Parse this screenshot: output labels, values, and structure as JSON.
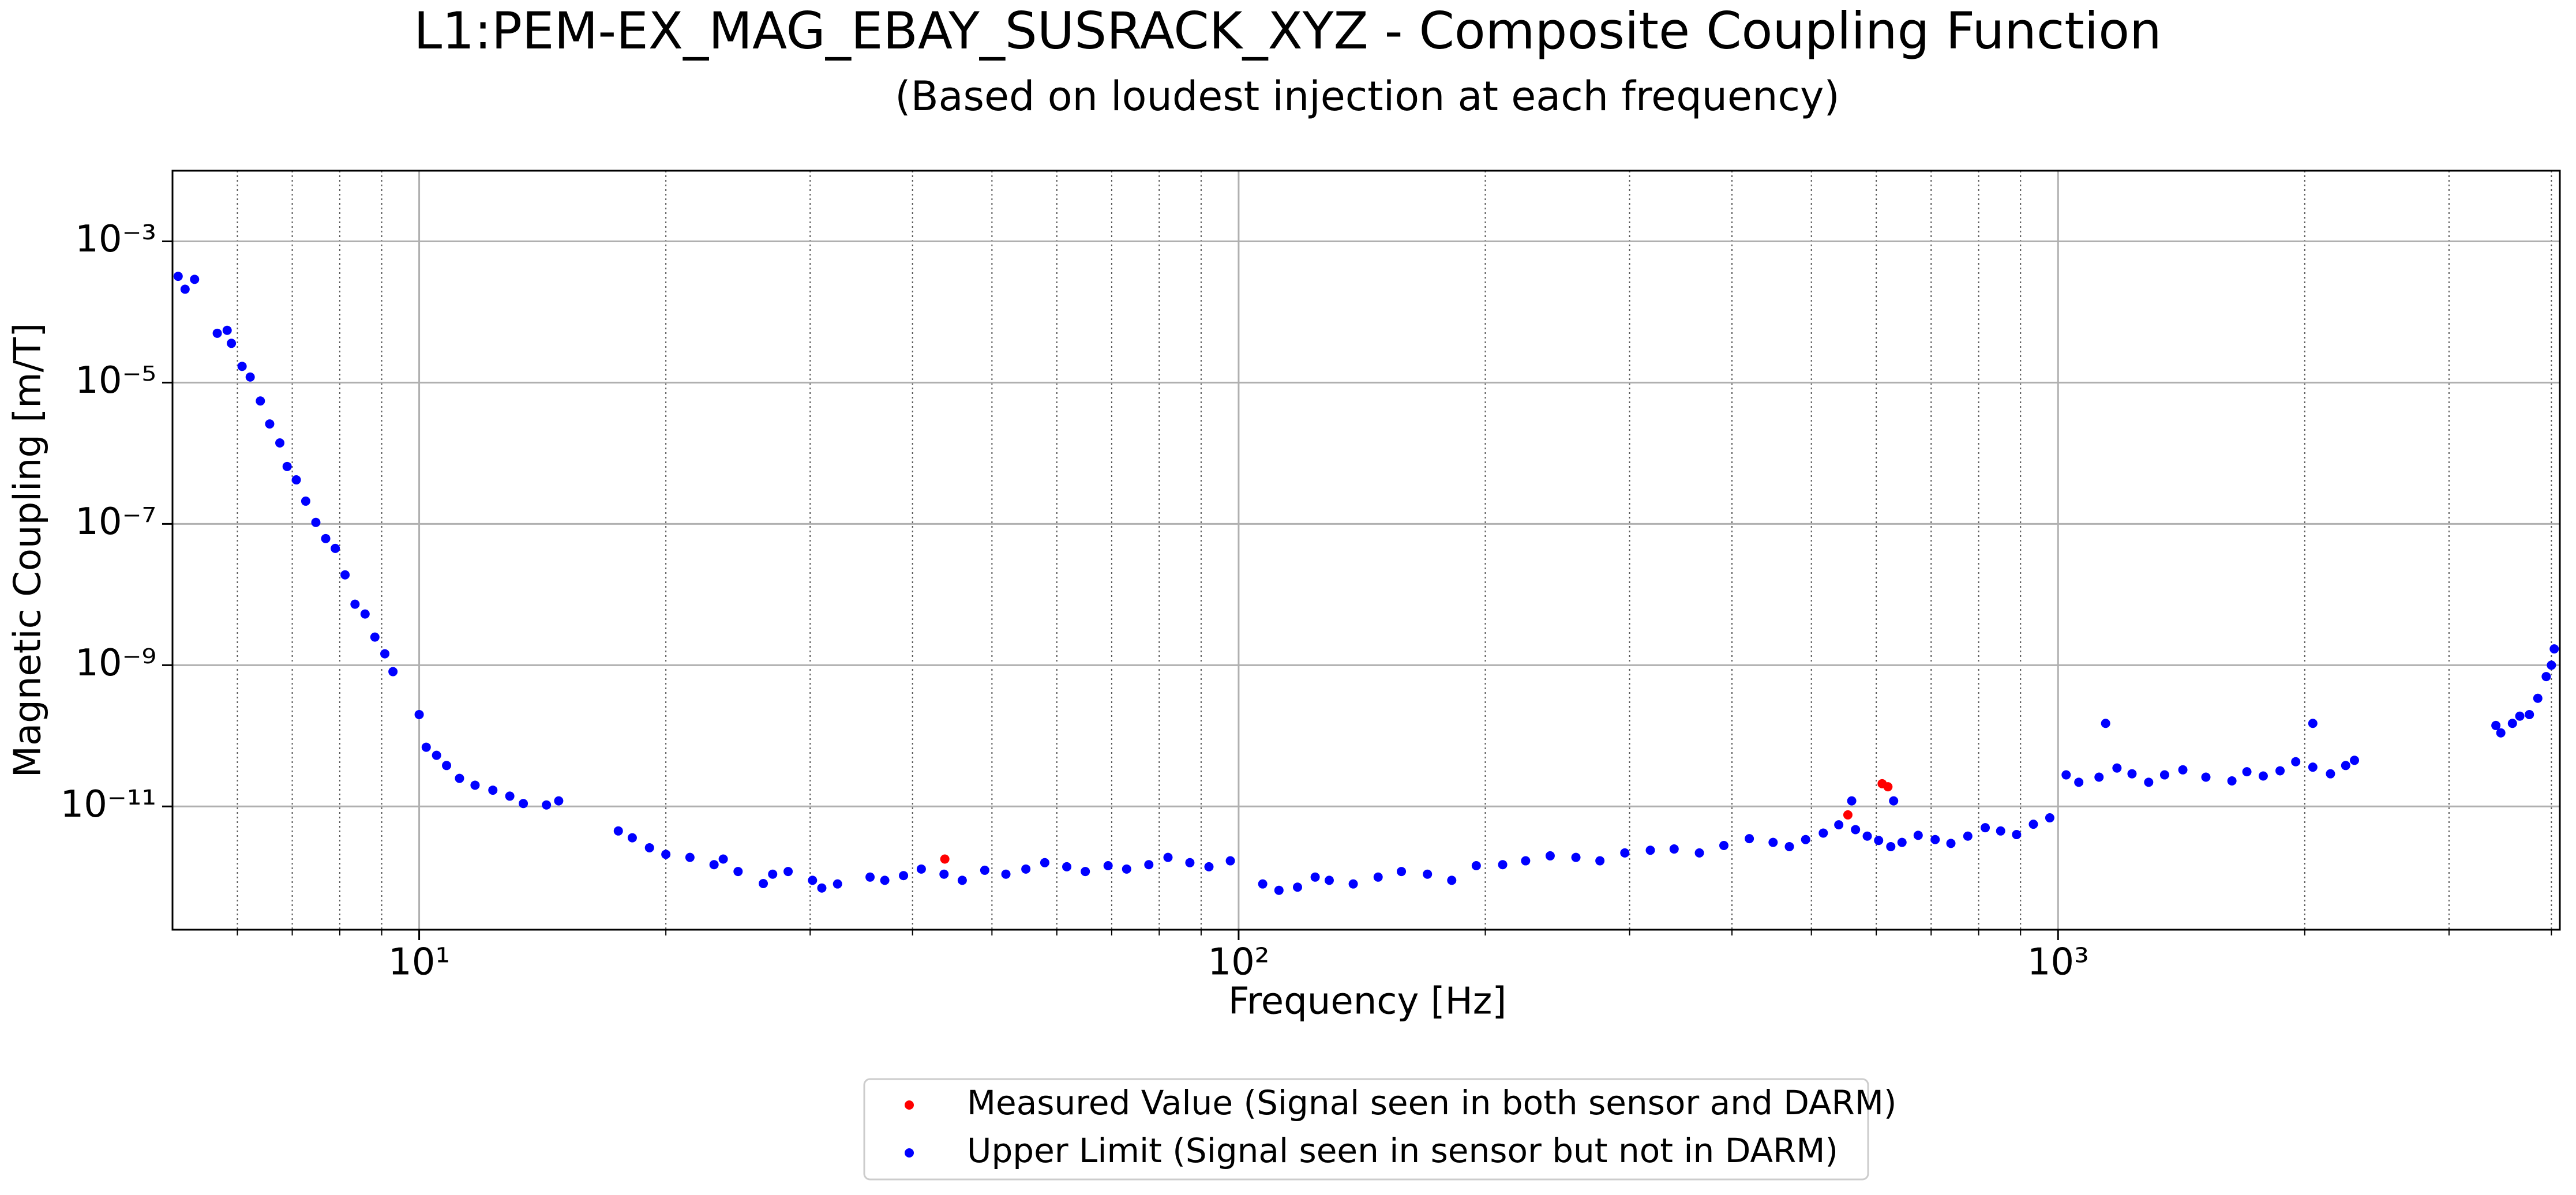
{
  "chart_data": {
    "type": "scatter",
    "title": "L1:PEM-EX_MAG_EBAY_SUSRACK_XYZ - Composite Coupling Function",
    "subtitle": "(Based on loudest injection at each frequency)",
    "xlabel": "Frequency [Hz]",
    "ylabel": "Magnetic Coupling [m/T]",
    "xscale": "log",
    "yscale": "log",
    "xlim": [
      5,
      4096
    ],
    "ylim": [
      1.8e-13,
      0.01
    ],
    "xticks": [
      {
        "value": 10,
        "label": "10¹"
      },
      {
        "value": 100,
        "label": "10²"
      },
      {
        "value": 1000,
        "label": "10³"
      }
    ],
    "xminor": [
      6,
      7,
      8,
      9,
      20,
      30,
      40,
      50,
      60,
      70,
      80,
      90,
      200,
      300,
      400,
      500,
      600,
      700,
      800,
      900,
      2000,
      3000,
      4000
    ],
    "yticks": [
      {
        "value": 0.001,
        "label": "10⁻³"
      },
      {
        "value": 1e-05,
        "label": "10⁻⁵"
      },
      {
        "value": 1e-07,
        "label": "10⁻⁷"
      },
      {
        "value": 1e-09,
        "label": "10⁻⁹"
      },
      {
        "value": 1e-11,
        "label": "10⁻¹¹"
      }
    ],
    "grid": true,
    "legend": "bottom",
    "series": [
      {
        "name": "Measured Value (Signal seen in both sensor and DARM)",
        "color": "#ff0000",
        "x": [
          43.8,
          554,
          620,
          610
        ],
        "values": [
          1.8e-12,
          7.6e-12,
          1.9e-11,
          2.1e-11
        ]
      },
      {
        "name": "Upper Limit (Signal seen in sensor but not in DARM)",
        "color": "#0000ff",
        "x": [
          5.08,
          5.18,
          5.32,
          5.67,
          5.83,
          5.9,
          6.08,
          6.22,
          6.4,
          6.57,
          6.76,
          6.9,
          7.08,
          7.27,
          7.48,
          7.69,
          7.9,
          8.12,
          8.35,
          8.59,
          8.83,
          9.08,
          9.29,
          10,
          10.2,
          10.5,
          10.8,
          11.2,
          11.7,
          12.3,
          12.9,
          13.4,
          14.3,
          14.8,
          17.5,
          18.2,
          19.1,
          20,
          21.4,
          22.9,
          24.5,
          26.3,
          28.2,
          30.2,
          32.4,
          35.5,
          39,
          43.7,
          49,
          55,
          61.7,
          69.3,
          77.7,
          87.2,
          97.7,
          107,
          118,
          129,
          148,
          170,
          195,
          224,
          258,
          296,
          340,
          391,
          449,
          492,
          517,
          566,
          604,
          645,
          708,
          776,
          851,
          933,
          977,
          1023,
          1122,
          1231,
          1349,
          1515,
          1700,
          1866,
          2046,
          2244,
          3422,
          3585,
          3760,
          3942,
          4032,
          1143,
          2046,
          560,
          630,
          23.5,
          27,
          31,
          37,
          41,
          46,
          52,
          58,
          65,
          73,
          82,
          92,
          112,
          124,
          138,
          158,
          182,
          210,
          240,
          276,
          318,
          365,
          420,
          470,
          540,
          585,
          625,
          675,
          740,
          815,
          890,
          1060,
          1180,
          1290,
          1420,
          1630,
          1780,
          1950,
          2150,
          2300,
          3470,
          3660,
          3850,
          4000
        ],
        "values": [
          0.00032,
          0.00021,
          0.00029,
          5e-05,
          5.5e-05,
          3.6e-05,
          1.7e-05,
          1.2e-05,
          5.5e-06,
          2.6e-06,
          1.4e-06,
          6.5e-07,
          4.2e-07,
          2.1e-07,
          1.05e-07,
          6.2e-08,
          4.5e-08,
          1.9e-08,
          7.3e-09,
          5.3e-09,
          2.5e-09,
          1.45e-09,
          8.1e-10,
          2e-10,
          6.9e-11,
          5.3e-11,
          3.8e-11,
          2.5e-11,
          2e-11,
          1.7e-11,
          1.4e-11,
          1.1e-11,
          1.05e-11,
          1.2e-11,
          4.5e-12,
          3.6e-12,
          2.6e-12,
          2.1e-12,
          1.9e-12,
          1.5e-12,
          1.2e-12,
          8.1e-13,
          1.2e-12,
          9e-13,
          8e-13,
          1e-12,
          1.05e-12,
          1.1e-12,
          1.25e-12,
          1.3e-12,
          1.4e-12,
          1.45e-12,
          1.5e-12,
          1.6e-12,
          1.7e-12,
          8e-13,
          7.2e-13,
          9e-13,
          1e-12,
          1.1e-12,
          1.45e-12,
          1.7e-12,
          1.9e-12,
          2.2e-12,
          2.5e-12,
          2.8e-12,
          3.1e-12,
          3.4e-12,
          4.2e-12,
          4.7e-12,
          3.3e-12,
          3.1e-12,
          3.4e-12,
          3.8e-12,
          4.5e-12,
          5.6e-12,
          6.9e-12,
          2.8e-11,
          2.6e-11,
          2.9e-11,
          2.8e-11,
          2.6e-11,
          3.1e-11,
          3.2e-11,
          3.6e-11,
          3.8e-11,
          1.4e-10,
          1.5e-10,
          2e-10,
          6.9e-10,
          1.7e-09,
          1.5e-10,
          1.5e-10,
          1.2e-11,
          1.2e-11,
          1.8e-12,
          1.1e-12,
          7e-13,
          9e-13,
          1.3e-12,
          9e-13,
          1.1e-12,
          1.6e-12,
          1.2e-12,
          1.3e-12,
          1.9e-12,
          1.4e-12,
          6.5e-13,
          1e-12,
          8e-13,
          1.2e-12,
          9e-13,
          1.5e-12,
          2e-12,
          1.7e-12,
          2.4e-12,
          2.2e-12,
          3.5e-12,
          2.7e-12,
          5.5e-12,
          3.8e-12,
          2.7e-12,
          3.9e-12,
          3e-12,
          5e-12,
          4e-12,
          2.2e-11,
          3.5e-11,
          2.2e-11,
          3.3e-11,
          2.3e-11,
          2.7e-11,
          4.3e-11,
          2.9e-11,
          4.5e-11,
          1.1e-10,
          1.9e-10,
          3.4e-10,
          1e-09
        ]
      }
    ]
  }
}
